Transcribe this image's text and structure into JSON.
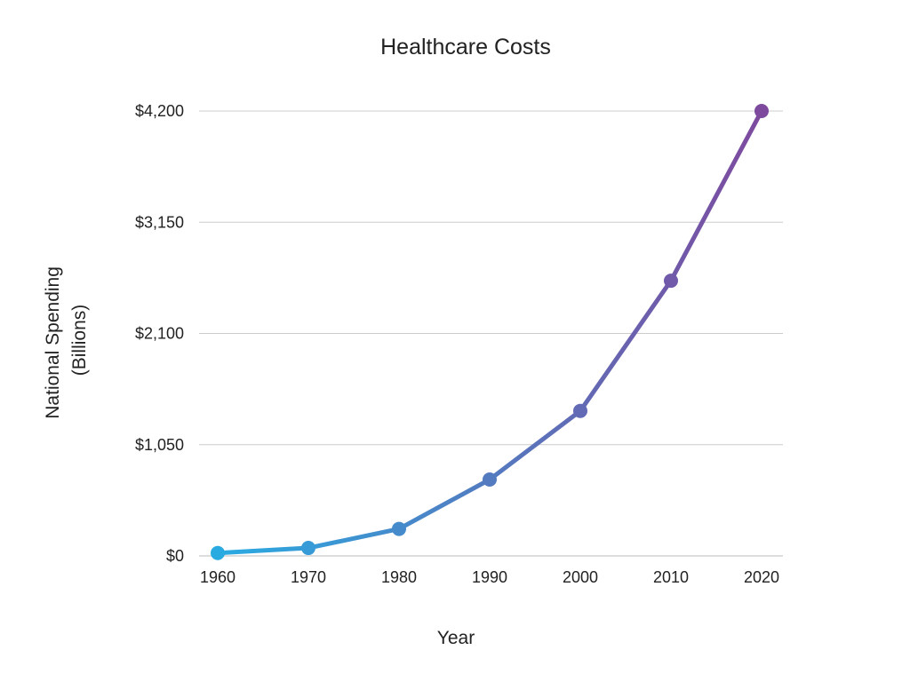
{
  "chart_data": {
    "type": "line",
    "title": "Healthcare Costs",
    "xlabel": "Year",
    "ylabel_lines": [
      "National Spending",
      "(Billions)"
    ],
    "x": [
      "1960",
      "1970",
      "1980",
      "1990",
      "2000",
      "2010",
      "2020"
    ],
    "series": [
      {
        "values": [
          27,
          75,
          255,
          721,
          1369,
          2598,
          4200
        ]
      }
    ],
    "ylim": [
      0,
      4200
    ],
    "y_ticks": [
      0,
      1050,
      2100,
      3150,
      4200
    ],
    "y_tick_labels": [
      "$0",
      "$1,050",
      "$2,100",
      "$3,150",
      "$4,200"
    ],
    "grid": true,
    "legend": "none",
    "colors": {
      "gradient_start": "#29ABE2",
      "gradient_end": "#7E4A9E",
      "grid": "#cccccc",
      "text": "#222222"
    }
  }
}
